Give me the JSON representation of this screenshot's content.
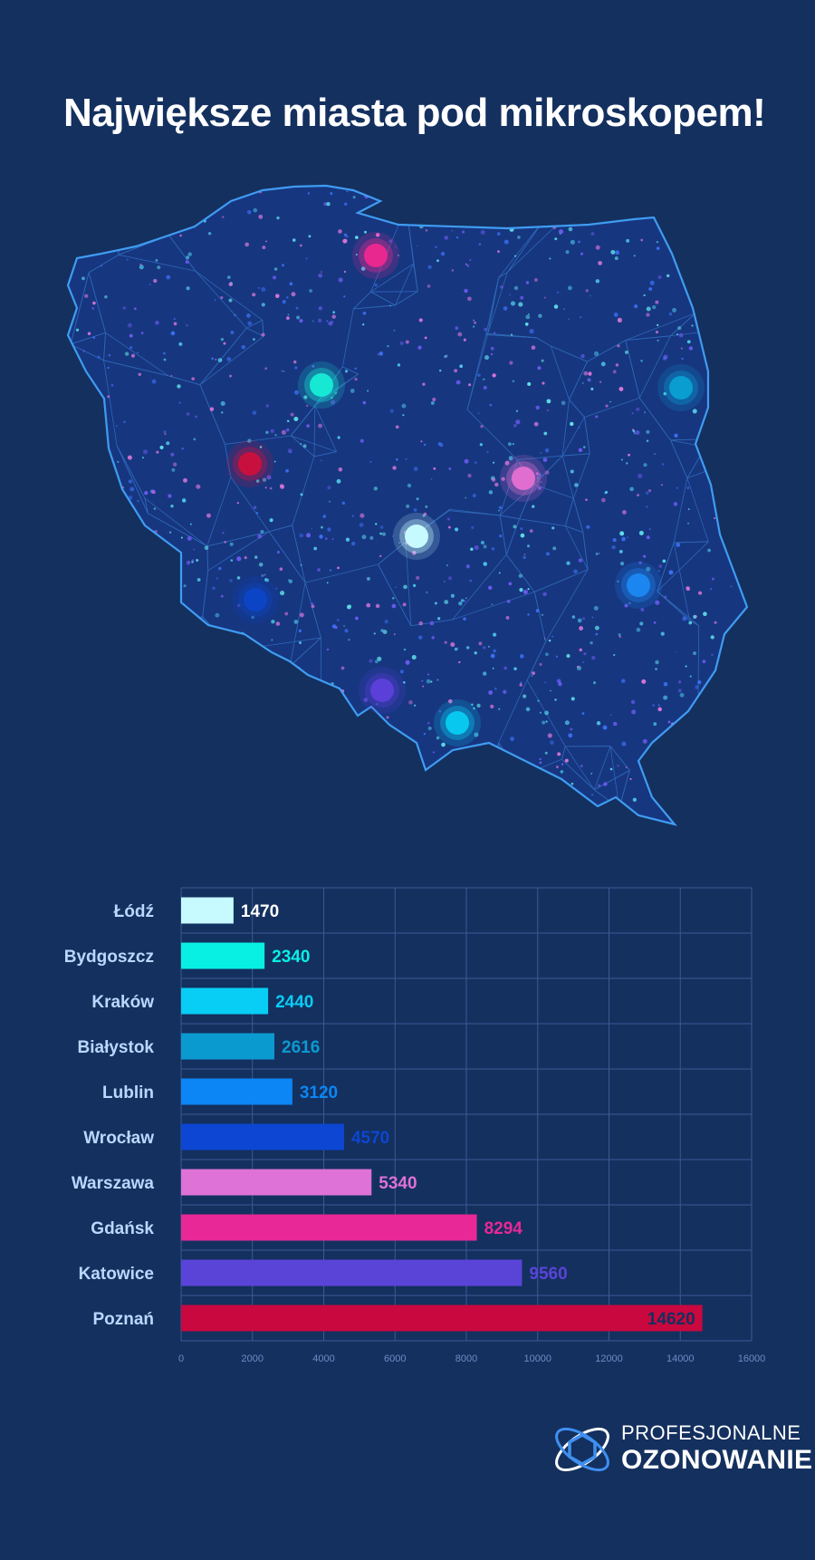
{
  "title": "Największe miasta pod mikroskopem!",
  "logo": {
    "line1": "PROFESJONALNE",
    "line2": "OZONOWANIE"
  },
  "map_markers": [
    {
      "color": "#e8288f"
    },
    {
      "color": "#17e8d4"
    },
    {
      "color": "#0a9dd0"
    },
    {
      "color": "#c8103e"
    },
    {
      "color": "#e06ed0"
    },
    {
      "color": "#c6faff"
    },
    {
      "color": "#1c86f0"
    },
    {
      "color": "#0c44c6"
    },
    {
      "color": "#5a3fd8"
    },
    {
      "color": "#08c8ef"
    }
  ],
  "chart_data": {
    "type": "bar",
    "orientation": "horizontal",
    "categories": [
      "Łódź",
      "Bydgoszcz",
      "Kraków",
      "Białystok",
      "Lublin",
      "Wrocław",
      "Warszawa",
      "Gdańsk",
      "Katowice",
      "Poznań"
    ],
    "values": [
      1470,
      2340,
      2440,
      2616,
      3120,
      4570,
      5340,
      8294,
      9560,
      14620
    ],
    "colors": [
      "#c6faff",
      "#08f0e4",
      "#08cdf5",
      "#0b9ad0",
      "#0c86f4",
      "#0c46d2",
      "#de72d6",
      "#e82896",
      "#5a44d8",
      "#c8083e"
    ],
    "xlim": [
      0,
      16000
    ],
    "xticks": [
      0,
      2000,
      4000,
      6000,
      8000,
      10000,
      12000,
      14000,
      16000
    ],
    "grid": true
  }
}
